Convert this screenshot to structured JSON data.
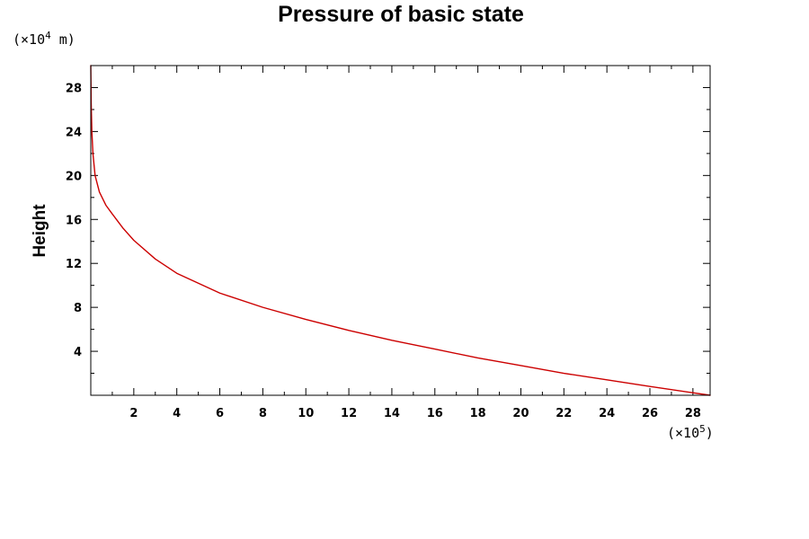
{
  "chart_data": {
    "type": "line",
    "title": "Pressure of basic state",
    "xlabel": "",
    "ylabel": "Height",
    "x_unit": {
      "prefix": "(×10",
      "exp": "5",
      "suffix": ")"
    },
    "y_unit": {
      "prefix": "(×10",
      "exp": "4",
      "suffix": " m)"
    },
    "xlim": [
      0,
      28.8
    ],
    "ylim": [
      0,
      30
    ],
    "x_major_ticks": [
      2,
      4,
      6,
      8,
      10,
      12,
      14,
      16,
      18,
      20,
      22,
      24,
      26,
      28
    ],
    "y_major_ticks": [
      4,
      8,
      12,
      16,
      20,
      24,
      28
    ],
    "grid": false,
    "series": [
      {
        "color": "#cc0000",
        "x": [
          0.0,
          0.02,
          0.05,
          0.1,
          0.2,
          0.4,
          0.7,
          1.0,
          1.5,
          2.0,
          3.0,
          4.0,
          6.0,
          8.0,
          10.0,
          12.0,
          14.0,
          16.0,
          18.0,
          20.0,
          22.0,
          24.0,
          26.0,
          28.8
        ],
        "y": [
          30.0,
          26.5,
          24.0,
          22.0,
          20.0,
          18.5,
          17.3,
          16.5,
          15.2,
          14.1,
          12.4,
          11.1,
          9.3,
          8.0,
          6.9,
          5.9,
          5.0,
          4.2,
          3.4,
          2.7,
          2.0,
          1.4,
          0.8,
          0.0
        ]
      }
    ]
  }
}
